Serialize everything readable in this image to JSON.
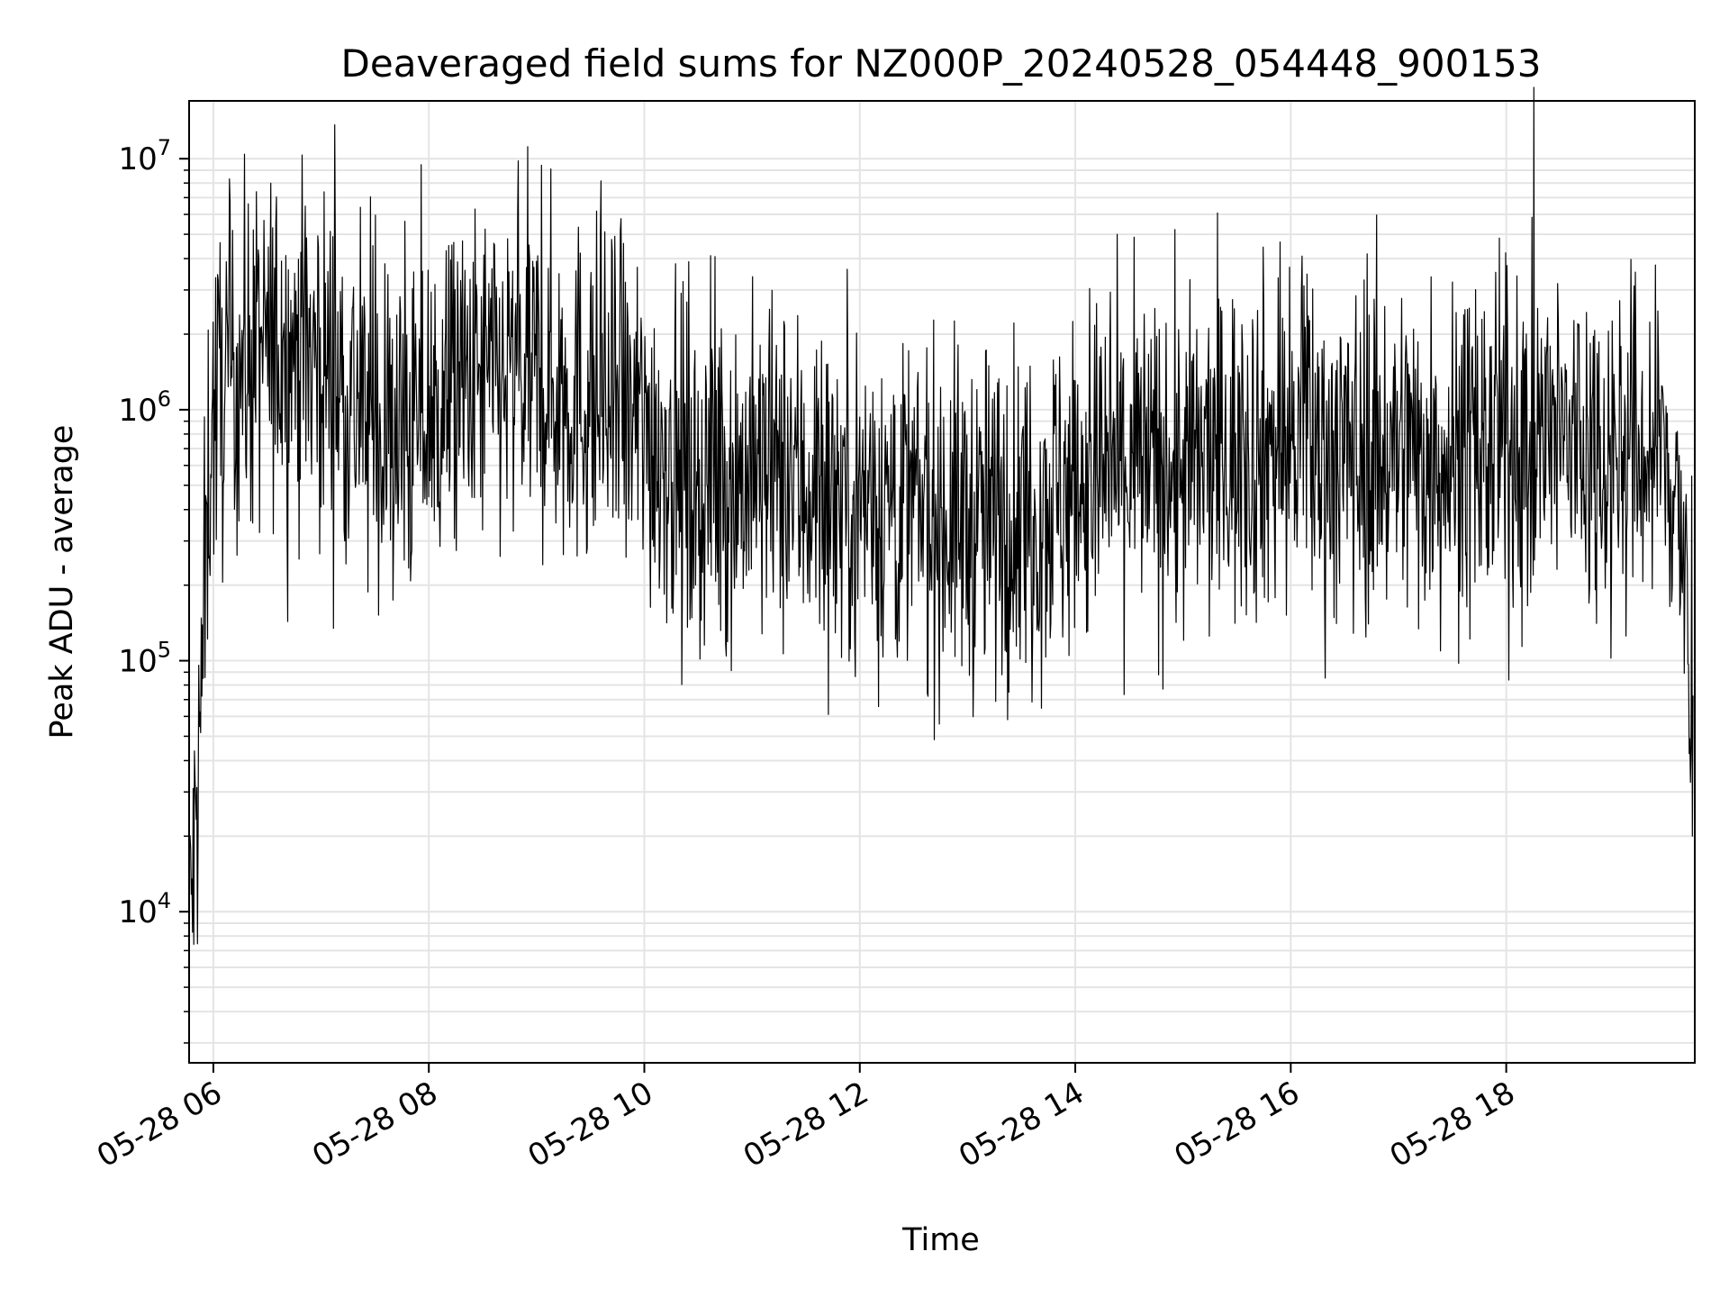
{
  "chart_data": {
    "type": "line",
    "title": "Deaveraged field sums for NZ000P_20240528_054448_900153",
    "xlabel": "Time",
    "ylabel": "Peak ADU - average",
    "y_scale": "log",
    "grid": true,
    "legend": "none",
    "xlim": [
      "2024-05-28T05:46:30",
      "2024-05-28T19:45:00"
    ],
    "ylim": [
      2500,
      17000000
    ],
    "x_ticks": [
      {
        "value": "2024-05-28T06:00",
        "label": "05-28 06"
      },
      {
        "value": "2024-05-28T08:00",
        "label": "05-28 08"
      },
      {
        "value": "2024-05-28T10:00",
        "label": "05-28 10"
      },
      {
        "value": "2024-05-28T12:00",
        "label": "05-28 12"
      },
      {
        "value": "2024-05-28T14:00",
        "label": "05-28 14"
      },
      {
        "value": "2024-05-28T16:00",
        "label": "05-28 16"
      },
      {
        "value": "2024-05-28T18:00",
        "label": "05-28 18"
      }
    ],
    "y_ticks": [
      {
        "value": 10000,
        "base": "10",
        "exp": "4"
      },
      {
        "value": 100000,
        "base": "10",
        "exp": "5"
      },
      {
        "value": 1000000,
        "base": "10",
        "exp": "6"
      },
      {
        "value": 10000000,
        "base": "10",
        "exp": "7"
      }
    ],
    "series": [
      {
        "color": "#000000",
        "x": [
          "2024-05-28T05:47",
          "2024-05-28T05:49",
          "2024-05-28T05:51",
          "2024-05-28T05:53",
          "2024-05-28T05:55",
          "2024-05-28T05:57",
          "2024-05-28T05:59",
          "2024-05-28T06:05",
          "2024-05-28T06:15",
          "2024-05-28T06:30",
          "2024-05-28T06:45",
          "2024-05-28T07:00",
          "2024-05-28T07:15",
          "2024-05-28T07:30",
          "2024-05-28T07:45",
          "2024-05-28T08:00",
          "2024-05-28T08:30",
          "2024-05-28T09:00",
          "2024-05-28T09:30",
          "2024-05-28T10:00",
          "2024-05-28T10:30",
          "2024-05-28T11:00",
          "2024-05-28T11:30",
          "2024-05-28T12:00",
          "2024-05-28T12:30",
          "2024-05-28T13:00",
          "2024-05-28T13:30",
          "2024-05-28T14:00",
          "2024-05-28T14:30",
          "2024-05-28T15:00",
          "2024-05-28T15:30",
          "2024-05-28T16:00",
          "2024-05-28T16:30",
          "2024-05-28T17:00",
          "2024-05-28T17:30",
          "2024-05-28T18:00",
          "2024-05-28T18:30",
          "2024-05-28T19:00",
          "2024-05-28T19:20",
          "2024-05-28T19:35",
          "2024-05-28T19:40",
          "2024-05-28T19:44"
        ],
        "y": [
          9000,
          15000,
          25000,
          60000,
          150000,
          500000,
          900000,
          1200000,
          1500000,
          1700000,
          1800000,
          1600000,
          1200000,
          800000,
          750000,
          950000,
          1300000,
          1300000,
          1100000,
          850000,
          500000,
          550000,
          500000,
          450000,
          400000,
          350000,
          380000,
          500000,
          600000,
          550000,
          700000,
          750000,
          650000,
          700000,
          650000,
          700000,
          750000,
          700000,
          650000,
          550000,
          150000,
          30000
        ],
        "spread_dex": 0.35
      }
    ]
  }
}
